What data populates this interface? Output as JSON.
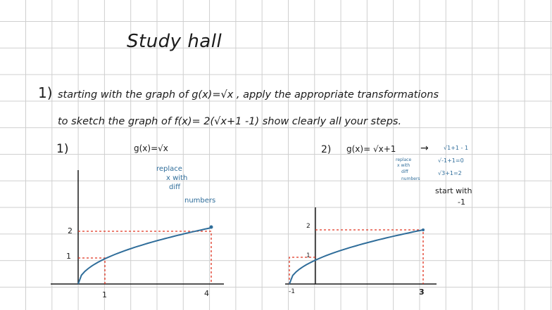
{
  "title": "Study hall",
  "problem": {
    "number": "1)",
    "line1": "starting with the graph of  g(x)=√x  , apply  the appropriate transformations",
    "line2": "to sketch the graph of f(x)= 2(√x+1 -1) show clearly all your steps."
  },
  "step1": {
    "label": "1)",
    "func": "g(x)=√x",
    "note_line1": "replace",
    "note_line2": "x with",
    "note_line3": "diff",
    "note_line4": "numbers",
    "y_ticks": [
      "2",
      "1"
    ],
    "x_ticks": [
      "1",
      "4"
    ]
  },
  "step2": {
    "label": "2)",
    "func": "g(x)= √x+1",
    "arrow": "→",
    "note_line1": "replace",
    "note_line2": "x with",
    "note_line3": "diff",
    "note_line4": "numbers",
    "side_line1": "√1+1 - 1",
    "side_line2": "√-1+1=0",
    "side_line3": "√3+1=2",
    "start_line1": "start with",
    "start_line2": "-1",
    "y_ticks": [
      "2",
      "1"
    ],
    "x_ticks": [
      "-1",
      "3"
    ]
  },
  "colors": {
    "ink": "#1b1b1b",
    "blue_ink": "#2f6d9a",
    "red_dotted": "#e0331f",
    "grid": "#cfcfcf"
  }
}
